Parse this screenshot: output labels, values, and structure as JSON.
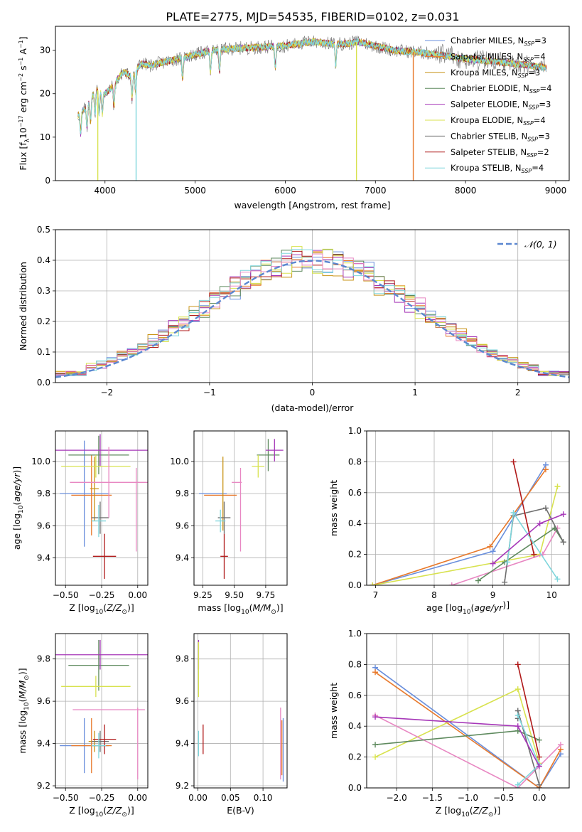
{
  "title": "PLATE=2775, MJD=54535, FIBERID=0102, z=0.031",
  "colors": {
    "c1": "#6a8fdc",
    "c2": "#e8792b",
    "c3": "#c89418",
    "c4": "#5e8a5e",
    "c5": "#a637b8",
    "c6": "#d8e24f",
    "c7": "#6e6e6e",
    "c8": "#b01a1a",
    "c9": "#7fd6dc",
    "c10": "#e887c2"
  },
  "chart_data": [
    {
      "id": "spectrum",
      "type": "line",
      "xlabel": "wavelength [Angstrom, rest frame]",
      "ylabel": "Flux [f",
      "xlim": [
        3450,
        9150
      ],
      "ylim": [
        0,
        35.5
      ],
      "xticks": [
        4000,
        5000,
        6000,
        7000,
        8000,
        9000
      ],
      "yticks": [
        0,
        10,
        20,
        30
      ],
      "grid": false,
      "legend_position": "top-right",
      "continuum": {
        "x": [
          3700,
          3800,
          3900,
          4000,
          4100,
          4200,
          4300,
          4400,
          4500,
          4700,
          5000,
          5200,
          5500,
          6000,
          6300,
          6500,
          6700,
          6800,
          7000,
          7200,
          7500,
          8000,
          8500,
          8900
        ],
        "y": [
          15,
          17,
          21,
          20,
          22,
          25,
          24,
          27,
          26.5,
          27.5,
          29,
          30,
          30.5,
          31,
          32,
          31.5,
          31.5,
          32,
          31,
          30,
          29.5,
          28,
          27,
          26
        ]
      },
      "series": [
        {
          "name": "Chabrier MILES, N",
          "sub": "SSP",
          "nssp": "=3",
          "color_key": "c1"
        },
        {
          "name": "Salpeter MILES, N",
          "sub": "SSP",
          "nssp": "=4",
          "color_key": "c2"
        },
        {
          "name": "Kroupa MILES, N",
          "sub": "SSP",
          "nssp": "=3",
          "color_key": "c3"
        },
        {
          "name": "Chabrier ELODIE, N",
          "sub": "SSP",
          "nssp": "=4",
          "color_key": "c4"
        },
        {
          "name": "Salpeter ELODIE, N",
          "sub": "SSP",
          "nssp": "=3",
          "color_key": "c5"
        },
        {
          "name": "Kroupa ELODIE, N",
          "sub": "SSP",
          "nssp": "=4",
          "color_key": "c6"
        },
        {
          "name": "Chabrier STELIB, N",
          "sub": "SSP",
          "nssp": "=3",
          "color_key": "c7"
        },
        {
          "name": "Salpeter STELIB, N",
          "sub": "SSP",
          "nssp": "=2",
          "color_key": "c8"
        },
        {
          "name": "Kroupa STELIB, N",
          "sub": "SSP",
          "nssp": "=4",
          "color_key": "c9"
        }
      ],
      "drops": [
        {
          "x": 3920,
          "color_key": "c6"
        },
        {
          "x": 4345,
          "color_key": "c9"
        },
        {
          "x": 6790,
          "color_key": "c6"
        },
        {
          "x": 7420,
          "color_key": "c2"
        }
      ]
    },
    {
      "id": "residuals",
      "type": "line",
      "xlabel": "(data-model)/error",
      "ylabel": "Normed distribution",
      "xlim": [
        -2.5,
        2.5
      ],
      "ylim": [
        0,
        0.5
      ],
      "xticks": [
        -2,
        -1,
        0,
        1,
        2
      ],
      "xtick_labels": [
        "−2",
        "−1",
        "0",
        "1",
        "2"
      ],
      "yticks": [
        0.0,
        0.1,
        0.2,
        0.3,
        0.4,
        0.5
      ],
      "ytick_labels": [
        "0.0",
        "0.1",
        "0.2",
        "0.3",
        "0.4",
        "0.5"
      ],
      "grid": true,
      "legend_label": "𝒩(0, 1)",
      "legend_position": "top-right",
      "bin_width": 0.1,
      "bin_start": -2.5,
      "histograms": [
        {
          "color_key": "c1"
        },
        {
          "color_key": "c2"
        },
        {
          "color_key": "c3"
        },
        {
          "color_key": "c4"
        },
        {
          "color_key": "c5"
        },
        {
          "color_key": "c6"
        },
        {
          "color_key": "c8"
        },
        {
          "color_key": "c9"
        },
        {
          "color_key": "c10"
        }
      ]
    },
    {
      "id": "age-vs-z",
      "type": "scatter",
      "xlabel": "Z [log",
      "ylabel": "age  [log",
      "xlim": [
        -0.57,
        0.07
      ],
      "ylim": [
        9.23,
        10.19
      ],
      "xticks": [
        -0.5,
        -0.25,
        0.0
      ],
      "xtick_labels": [
        "−0.50",
        "−0.25",
        "0.00"
      ],
      "yticks": [
        9.4,
        9.6,
        9.8,
        10.0
      ],
      "ytick_labels": [
        "9.4",
        "9.6",
        "9.8",
        "10.0"
      ],
      "grid": true,
      "points": [
        {
          "x": -0.37,
          "y": 9.8,
          "xerr": 0.17,
          "yerr": 0.33,
          "color_key": "c1"
        },
        {
          "x": -0.32,
          "y": 9.79,
          "xerr": 0.14,
          "yerr": 0.25,
          "color_key": "c2"
        },
        {
          "x": -0.3,
          "y": 9.83,
          "xerr": 0.03,
          "yerr": 0.2,
          "color_key": "c3"
        },
        {
          "x": -0.27,
          "y": 10.04,
          "xerr": 0.21,
          "yerr": 0.12,
          "color_key": "c4"
        },
        {
          "x": -0.26,
          "y": 10.07,
          "xerr": 0.33,
          "yerr": 0.1,
          "color_key": "c5"
        },
        {
          "x": -0.29,
          "y": 9.97,
          "xerr": 0.24,
          "yerr": 0.07,
          "color_key": "c6"
        },
        {
          "x": -0.26,
          "y": 9.65,
          "xerr": 0.06,
          "yerr": 0.1,
          "color_key": "c7"
        },
        {
          "x": -0.23,
          "y": 9.41,
          "xerr": 0.08,
          "yerr": 0.14,
          "color_key": "c8"
        },
        {
          "x": -0.27,
          "y": 9.63,
          "xerr": 0.05,
          "yerr": 0.1,
          "color_key": "c9"
        },
        {
          "x": -0.2,
          "y": 9.87,
          "xerr": 0.27,
          "yerr": 0.22,
          "color_key": "c10"
        },
        {
          "x": -0.01,
          "y": 9.7,
          "xerr": 0.0,
          "yerr": 0.26,
          "color_key": "c10"
        }
      ]
    },
    {
      "id": "age-vs-mass",
      "type": "scatter",
      "xlabel": "mass [log",
      "ylabel": "",
      "xlim": [
        9.18,
        9.92
      ],
      "ylim": [
        9.23,
        10.19
      ],
      "xticks": [
        9.25,
        9.5,
        9.75
      ],
      "xtick_labels": [
        "9.25",
        "9.50",
        "9.75"
      ],
      "yticks": [
        9.4,
        9.6,
        9.8,
        10.0
      ],
      "ytick_labels": [
        "9.4",
        "9.6",
        "9.8",
        "10.0"
      ],
      "grid": true,
      "points": [
        {
          "x": 9.33,
          "y": 9.8,
          "xerr": 0.11,
          "yerr": 0.0,
          "color_key": "c1"
        },
        {
          "x": 9.39,
          "y": 9.79,
          "xerr": 0.13,
          "yerr": 0.0,
          "color_key": "c2"
        },
        {
          "x": 9.41,
          "y": 9.8,
          "xerr": 0.0,
          "yerr": 0.23,
          "color_key": "c3"
        },
        {
          "x": 9.77,
          "y": 10.04,
          "xerr": 0.09,
          "yerr": 0.1,
          "color_key": "c4"
        },
        {
          "x": 9.82,
          "y": 10.07,
          "xerr": 0.07,
          "yerr": 0.07,
          "color_key": "c5"
        },
        {
          "x": 9.69,
          "y": 9.97,
          "xerr": 0.05,
          "yerr": 0.07,
          "color_key": "c6"
        },
        {
          "x": 9.42,
          "y": 9.65,
          "xerr": 0.05,
          "yerr": 0.1,
          "color_key": "c7"
        },
        {
          "x": 9.42,
          "y": 9.41,
          "xerr": 0.03,
          "yerr": 0.14,
          "color_key": "c8"
        },
        {
          "x": 9.39,
          "y": 9.63,
          "xerr": 0.04,
          "yerr": 0.07,
          "color_key": "c9"
        },
        {
          "x": 9.55,
          "y": 9.7,
          "xerr": 0.0,
          "yerr": 0.26,
          "color_key": "c10"
        },
        {
          "x": 9.52,
          "y": 9.87,
          "xerr": 0.04,
          "yerr": 0.0,
          "color_key": "c10"
        }
      ]
    },
    {
      "id": "weight-vs-age",
      "type": "line",
      "xlabel": "age  [log",
      "ylabel": "mass weight",
      "xlim": [
        6.85,
        10.3
      ],
      "ylim": [
        0,
        1.0
      ],
      "xticks": [
        7,
        8,
        9,
        10
      ],
      "xtick_labels": [
        "7",
        "8",
        "9",
        "10"
      ],
      "yticks": [
        0.0,
        0.2,
        0.4,
        0.6,
        0.8,
        1.0
      ],
      "ytick_labels": [
        "0.0",
        "0.2",
        "0.4",
        "0.6",
        "0.8",
        "1.0"
      ],
      "grid": true,
      "series": [
        {
          "color_key": "c1",
          "x": [
            6.95,
            9.0,
            9.9
          ],
          "y": [
            0.0,
            0.22,
            0.78
          ]
        },
        {
          "color_key": "c2",
          "x": [
            6.95,
            8.95,
            9.9
          ],
          "y": [
            0.0,
            0.25,
            0.75
          ]
        },
        {
          "color_key": "c6",
          "x": [
            6.95,
            9.8,
            10.1
          ],
          "y": [
            0.0,
            0.2,
            0.64
          ]
        },
        {
          "color_key": "c10",
          "x": [
            8.3,
            9.85,
            10.1
          ],
          "y": [
            0.0,
            0.2,
            0.37
          ]
        },
        {
          "color_key": "c4",
          "x": [
            8.75,
            9.2,
            10.05,
            10.2
          ],
          "y": [
            0.03,
            0.15,
            0.37,
            0.28
          ]
        },
        {
          "color_key": "c7",
          "x": [
            9.2,
            9.35,
            9.9,
            10.2
          ],
          "y": [
            0.02,
            0.45,
            0.5,
            0.28
          ]
        },
        {
          "color_key": "c8",
          "x": [
            9.35,
            9.7
          ],
          "y": [
            0.8,
            0.2
          ]
        },
        {
          "color_key": "c9",
          "x": [
            9.25,
            9.35,
            10.1
          ],
          "y": [
            0.15,
            0.47,
            0.04
          ]
        },
        {
          "color_key": "c5",
          "x": [
            9.0,
            9.8,
            10.2
          ],
          "y": [
            0.14,
            0.4,
            0.46
          ]
        }
      ]
    },
    {
      "id": "mass-vs-z",
      "type": "scatter",
      "xlabel": "Z [log",
      "ylabel": "mass [log",
      "xlim": [
        -0.57,
        0.07
      ],
      "ylim": [
        9.19,
        9.92
      ],
      "xticks": [
        -0.5,
        -0.25,
        0.0
      ],
      "xtick_labels": [
        "−0.50",
        "−0.25",
        "0.00"
      ],
      "yticks": [
        9.2,
        9.4,
        9.6,
        9.8
      ],
      "ytick_labels": [
        "9.2",
        "9.4",
        "9.6",
        "9.8"
      ],
      "grid": true,
      "points": [
        {
          "x": -0.37,
          "y": 9.39,
          "xerr": 0.17,
          "yerr": 0.13,
          "color_key": "c1"
        },
        {
          "x": -0.32,
          "y": 9.39,
          "xerr": 0.14,
          "yerr": 0.13,
          "color_key": "c2"
        },
        {
          "x": -0.3,
          "y": 9.41,
          "xerr": 0.04,
          "yerr": 0.05,
          "color_key": "c3"
        },
        {
          "x": -0.27,
          "y": 9.77,
          "xerr": 0.21,
          "yerr": 0.12,
          "color_key": "c4"
        },
        {
          "x": -0.26,
          "y": 9.82,
          "xerr": 0.33,
          "yerr": 0.07,
          "color_key": "c5"
        },
        {
          "x": -0.29,
          "y": 9.67,
          "xerr": 0.24,
          "yerr": 0.05,
          "color_key": "c6"
        },
        {
          "x": -0.26,
          "y": 9.41,
          "xerr": 0.06,
          "yerr": 0.05,
          "color_key": "c7"
        },
        {
          "x": -0.23,
          "y": 9.42,
          "xerr": 0.08,
          "yerr": 0.07,
          "color_key": "c8"
        },
        {
          "x": -0.27,
          "y": 9.39,
          "xerr": 0.05,
          "yerr": 0.06,
          "color_key": "c9"
        },
        {
          "x": -0.2,
          "y": 9.56,
          "xerr": 0.25,
          "yerr": 0.0,
          "color_key": "c10"
        },
        {
          "x": 0.0,
          "y": 9.4,
          "xerr": 0.0,
          "yerr": 0.17,
          "color_key": "c10"
        }
      ]
    },
    {
      "id": "mass-vs-ebv",
      "type": "scatter",
      "xlabel": "E(B-V)",
      "ylabel": "",
      "xlim": [
        -0.006,
        0.137
      ],
      "ylim": [
        9.19,
        9.92
      ],
      "xticks": [
        0.0,
        0.05,
        0.1
      ],
      "xtick_labels": [
        "0.00",
        "0.05",
        "0.10"
      ],
      "yticks": [
        9.2,
        9.4,
        9.6,
        9.8
      ],
      "ytick_labels": [
        "9.2",
        "9.4",
        "9.6",
        "9.8"
      ],
      "grid": true,
      "points": [
        {
          "x": 0.001,
          "y": 9.82,
          "xerr": 0.0,
          "yerr": 0.07,
          "color_key": "c5"
        },
        {
          "x": 0.001,
          "y": 9.75,
          "xerr": 0.0,
          "yerr": 0.13,
          "color_key": "c6"
        },
        {
          "x": 0.001,
          "y": 9.4,
          "xerr": 0.0,
          "yerr": 0.06,
          "color_key": "c9"
        },
        {
          "x": 0.008,
          "y": 9.42,
          "xerr": 0.0,
          "yerr": 0.07,
          "color_key": "c8"
        },
        {
          "x": 0.127,
          "y": 9.4,
          "xerr": 0.0,
          "yerr": 0.17,
          "color_key": "c10"
        },
        {
          "x": 0.129,
          "y": 9.38,
          "xerr": 0.0,
          "yerr": 0.13,
          "color_key": "c2"
        },
        {
          "x": 0.131,
          "y": 9.37,
          "xerr": 0.0,
          "yerr": 0.15,
          "color_key": "c1"
        }
      ]
    },
    {
      "id": "weight-vs-z",
      "type": "line",
      "xlabel": "Z [log",
      "ylabel": "mass weight",
      "xlim": [
        -2.42,
        0.42
      ],
      "ylim": [
        0,
        1.0
      ],
      "xticks": [
        -2.0,
        -1.5,
        -1.0,
        -0.5,
        0.0
      ],
      "xtick_labels": [
        "−2.0",
        "−1.5",
        "−1.0",
        "−0.5",
        "0.0"
      ],
      "yticks": [
        0.0,
        0.2,
        0.4,
        0.6,
        0.8,
        1.0
      ],
      "ytick_labels": [
        "0.0",
        "0.2",
        "0.4",
        "0.6",
        "0.8",
        "1.0"
      ],
      "grid": true,
      "series": [
        {
          "color_key": "c1",
          "x": [
            -2.3,
            0.0,
            0.3
          ],
          "y": [
            0.78,
            0.0,
            0.22
          ]
        },
        {
          "color_key": "c2",
          "x": [
            -2.3,
            0.0,
            0.3
          ],
          "y": [
            0.75,
            0.0,
            0.25
          ]
        },
        {
          "color_key": "c6",
          "x": [
            -2.3,
            -0.3,
            0.0
          ],
          "y": [
            0.2,
            0.64,
            0.16
          ]
        },
        {
          "color_key": "c10",
          "x": [
            -2.3,
            -0.3,
            0.3
          ],
          "y": [
            0.47,
            0.0,
            0.28
          ]
        },
        {
          "color_key": "c4",
          "x": [
            -2.3,
            -0.3,
            0.0
          ],
          "y": [
            0.28,
            0.37,
            0.31
          ]
        },
        {
          "color_key": "c7",
          "x": [
            -0.3,
            -0.3,
            0.0
          ],
          "y": [
            0.45,
            0.5,
            0.02
          ]
        },
        {
          "color_key": "c8",
          "x": [
            -0.3,
            0.0
          ],
          "y": [
            0.8,
            0.2
          ]
        },
        {
          "color_key": "c9",
          "x": [
            -0.3,
            0.0,
            -0.3
          ],
          "y": [
            0.02,
            0.15,
            0.47
          ]
        },
        {
          "color_key": "c5",
          "x": [
            -2.3,
            -0.3,
            0.0
          ],
          "y": [
            0.46,
            0.4,
            0.14
          ]
        }
      ]
    }
  ]
}
